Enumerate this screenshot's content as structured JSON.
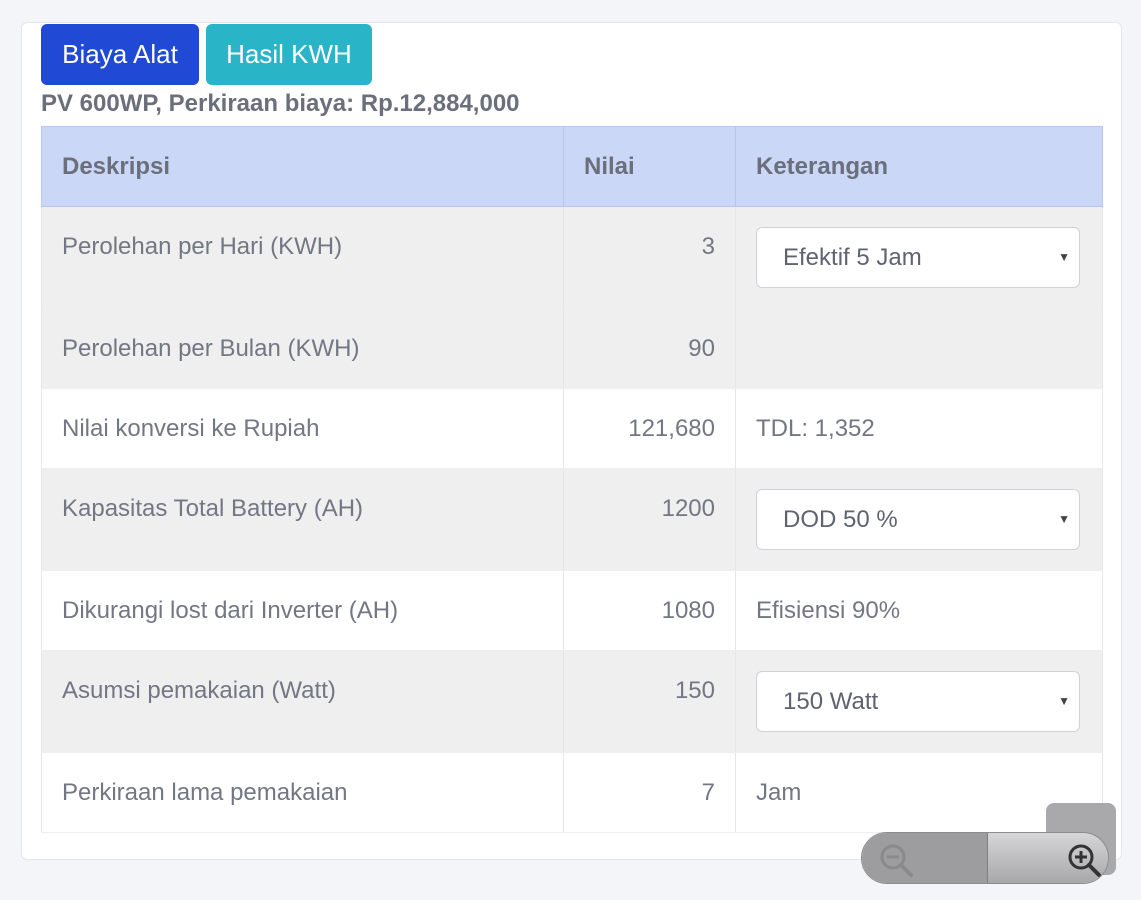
{
  "tabs": {
    "biaya_alat": "Biaya Alat",
    "hasil_kwh": "Hasil KWH"
  },
  "summary": "PV 600WP, Perkiraan biaya: Rp.12,884,000",
  "table": {
    "headers": [
      "Deskripsi",
      "Nilai",
      "Keterangan"
    ],
    "rows": [
      {
        "deskripsi": "Perolehan per Hari (KWH)",
        "nilai": "3",
        "keterangan": "Efektif 5 Jam"
      },
      {
        "deskripsi": "Perolehan per Bulan (KWH)",
        "nilai": "90",
        "keterangan": ""
      },
      {
        "deskripsi": "Nilai konversi ke Rupiah",
        "nilai": "121,680",
        "keterangan": "TDL: 1,352"
      },
      {
        "deskripsi": "Kapasitas Total Battery (AH)",
        "nilai": "1200",
        "keterangan": "DOD 50 %"
      },
      {
        "deskripsi": "Dikurangi lost dari Inverter (AH)",
        "nilai": "1080",
        "keterangan": "Efisiensi 90%"
      },
      {
        "deskripsi": "Asumsi pemakaian (Watt)",
        "nilai": "150",
        "keterangan": "150 Watt"
      },
      {
        "deskripsi": "Perkiraan lama pemakaian",
        "nilai": "7",
        "keterangan": "Jam"
      }
    ]
  },
  "icons": {
    "select_caret": "caret-down-icon",
    "zoom_out": "zoom-out-icon",
    "zoom_in": "zoom-in-icon"
  },
  "colors": {
    "primary_button": "#2049d6",
    "info_button": "#2ab4c8",
    "table_header": "#cbd7f7"
  }
}
